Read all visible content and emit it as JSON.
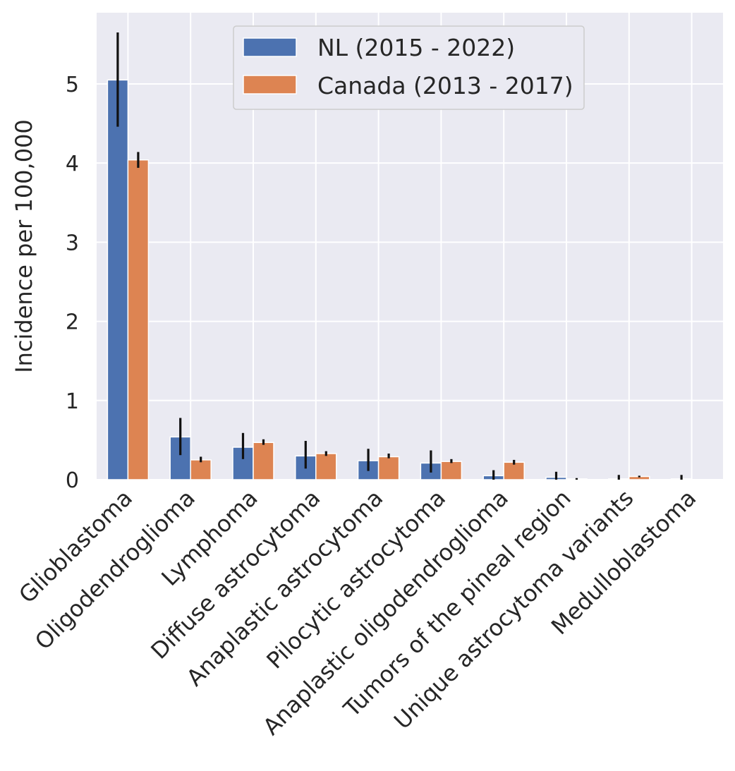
{
  "chart_data": {
    "type": "bar",
    "title": "",
    "xlabel": "",
    "ylabel": "Incidence per 100,000",
    "ylim": [
      0,
      5.9
    ],
    "yticks": [
      0,
      1,
      2,
      3,
      4,
      5
    ],
    "grid": true,
    "legend_position": "top-center",
    "categories": [
      "Glioblastoma",
      "Oligodendroglioma",
      "Lymphoma",
      "Diffuse astrocytoma",
      "Anaplastic astrocytoma",
      "Pilocytic astrocytoma",
      "Anaplastic oligodendroglioma",
      "Tumors of the pineal region",
      "Unique astrocytoma variants",
      "Medulloblastoma"
    ],
    "series": [
      {
        "name": "NL (2015 - 2022)",
        "color": "#4c72b0",
        "values": [
          5.05,
          0.54,
          0.41,
          0.3,
          0.24,
          0.21,
          0.05,
          0.03,
          0.01,
          0.01
        ],
        "error_low": [
          4.46,
          0.31,
          0.26,
          0.14,
          0.11,
          0.09,
          0.0,
          0.0,
          0.0,
          0.0
        ],
        "error_high": [
          5.65,
          0.78,
          0.59,
          0.49,
          0.39,
          0.37,
          0.12,
          0.1,
          0.06,
          0.06
        ]
      },
      {
        "name": "Canada (2013 - 2017)",
        "color": "#dd8452",
        "values": [
          4.04,
          0.25,
          0.47,
          0.33,
          0.29,
          0.23,
          0.22,
          0.01,
          0.04,
          0.0
        ],
        "error_low": [
          3.94,
          0.22,
          0.44,
          0.3,
          0.27,
          0.21,
          0.19,
          0.0,
          0.03,
          0.0
        ],
        "error_high": [
          4.14,
          0.29,
          0.51,
          0.36,
          0.33,
          0.26,
          0.25,
          0.02,
          0.05,
          0.0
        ]
      }
    ]
  }
}
